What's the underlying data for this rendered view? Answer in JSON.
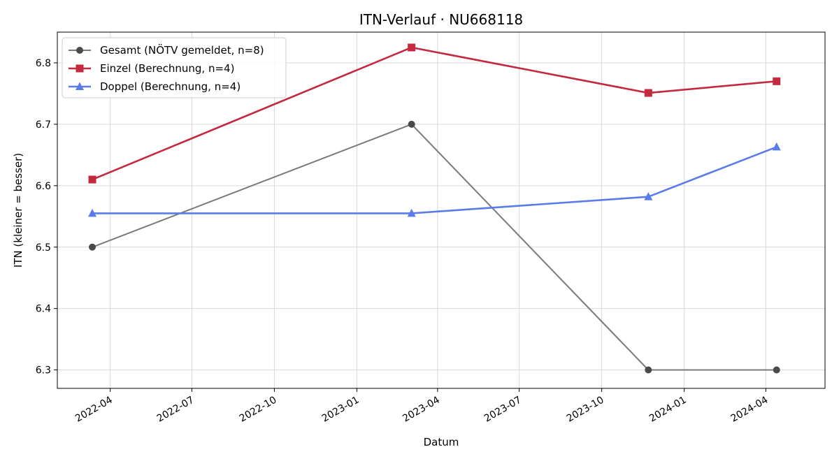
{
  "chart_data": {
    "type": "line",
    "title": "ITN-Verlauf · NU668118",
    "xlabel": "Datum",
    "ylabel": "ITN  (kleiner = besser)",
    "x_axis_kind": "date",
    "xlim": [
      "2022-02-01",
      "2024-06-06"
    ],
    "ylim": [
      6.27,
      6.85
    ],
    "x_ticks": [
      "2022-04",
      "2022-07",
      "2022-10",
      "2023-01",
      "2023-04",
      "2023-07",
      "2023-10",
      "2024-01",
      "2024-04"
    ],
    "y_ticks": [
      6.3,
      6.4,
      6.5,
      6.6,
      6.7,
      6.8
    ],
    "grid": true,
    "legend_position": "top-left",
    "series": [
      {
        "name": "Gesamt (NÖTV gemeldet, n=8)",
        "color": "#7a7a7a",
        "marker_color": "#4a4a4a",
        "marker": "circle",
        "x": [
          "2022-03-12",
          "2023-03-03",
          "2023-11-22",
          "2024-04-13"
        ],
        "values": [
          6.5,
          6.7,
          6.3,
          6.3
        ]
      },
      {
        "name": "Einzel (Berechnung, n=4)",
        "color": "#c4293f",
        "marker_color": "#c4293f",
        "marker": "square",
        "x": [
          "2022-03-12",
          "2023-03-03",
          "2023-11-22",
          "2024-04-13"
        ],
        "values": [
          6.61,
          6.825,
          6.751,
          6.77
        ]
      },
      {
        "name": "Doppel (Berechnung, n=4)",
        "color": "#5a7be8",
        "marker_color": "#5a7be8",
        "marker": "triangle",
        "x": [
          "2022-03-12",
          "2023-03-03",
          "2023-11-22",
          "2024-04-13"
        ],
        "values": [
          6.555,
          6.555,
          6.582,
          6.663
        ]
      }
    ]
  }
}
